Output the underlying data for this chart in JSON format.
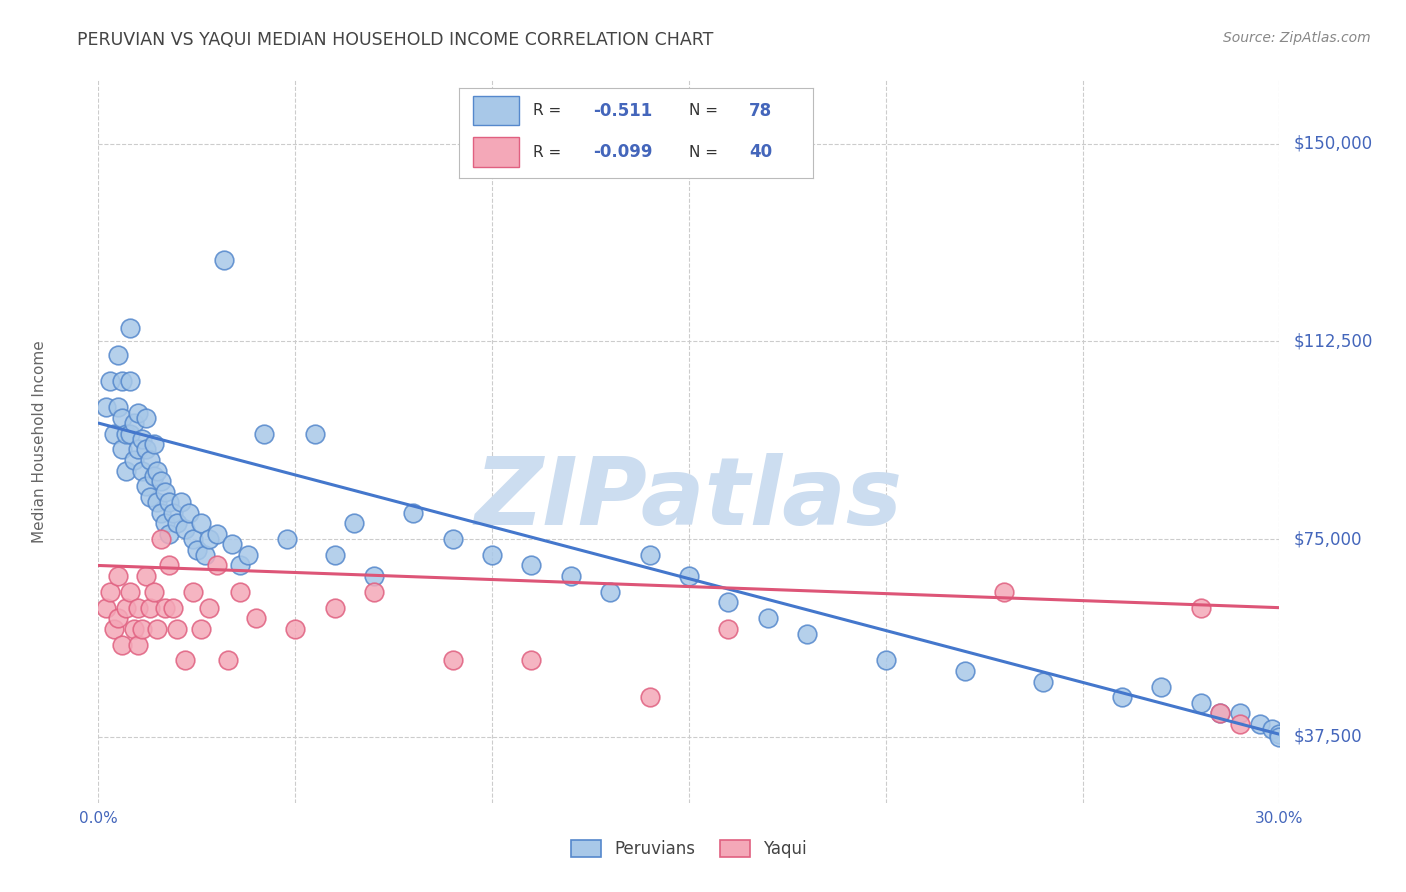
{
  "title": "PERUVIAN VS YAQUI MEDIAN HOUSEHOLD INCOME CORRELATION CHART",
  "source": "Source: ZipAtlas.com",
  "ylabel": "Median Household Income",
  "xlim": [
    0.0,
    0.3
  ],
  "ylim": [
    25000,
    162000
  ],
  "yticks": [
    37500,
    75000,
    112500,
    150000
  ],
  "ytick_labels": [
    "$37,500",
    "$75,000",
    "$112,500",
    "$150,000"
  ],
  "xticks": [
    0.0,
    0.05,
    0.1,
    0.15,
    0.2,
    0.25,
    0.3
  ],
  "blue_color": "#a8c8e8",
  "pink_color": "#f4a8b8",
  "blue_edge_color": "#5588cc",
  "pink_edge_color": "#e06080",
  "blue_line_color": "#4477cc",
  "pink_line_color": "#dd5577",
  "text_color": "#4466bb",
  "title_color": "#444444",
  "source_color": "#888888",
  "axis_label_color": "#666666",
  "grid_color": "#cccccc",
  "background_color": "#ffffff",
  "watermark_text": "ZIPatlas",
  "watermark_color": "#ccddf0",
  "legend_blue_r": "-0.511",
  "legend_blue_n": "78",
  "legend_pink_r": "-0.099",
  "legend_pink_n": "40",
  "blue_trend_x": [
    0.0,
    0.3
  ],
  "blue_trend_y": [
    97000,
    38000
  ],
  "pink_trend_x": [
    0.0,
    0.3
  ],
  "pink_trend_y": [
    70000,
    62000
  ],
  "blue_x": [
    0.002,
    0.003,
    0.004,
    0.005,
    0.005,
    0.006,
    0.006,
    0.006,
    0.007,
    0.007,
    0.008,
    0.008,
    0.008,
    0.009,
    0.009,
    0.01,
    0.01,
    0.011,
    0.011,
    0.012,
    0.012,
    0.012,
    0.013,
    0.013,
    0.014,
    0.014,
    0.015,
    0.015,
    0.016,
    0.016,
    0.017,
    0.017,
    0.018,
    0.018,
    0.019,
    0.02,
    0.021,
    0.022,
    0.023,
    0.024,
    0.025,
    0.026,
    0.027,
    0.028,
    0.03,
    0.032,
    0.034,
    0.036,
    0.038,
    0.042,
    0.048,
    0.055,
    0.06,
    0.065,
    0.07,
    0.08,
    0.09,
    0.1,
    0.11,
    0.12,
    0.13,
    0.14,
    0.15,
    0.16,
    0.17,
    0.18,
    0.2,
    0.22,
    0.24,
    0.26,
    0.27,
    0.28,
    0.285,
    0.29,
    0.295,
    0.298,
    0.3,
    0.3
  ],
  "blue_y": [
    100000,
    105000,
    95000,
    110000,
    100000,
    92000,
    98000,
    105000,
    88000,
    95000,
    115000,
    105000,
    95000,
    90000,
    97000,
    92000,
    99000,
    88000,
    94000,
    85000,
    92000,
    98000,
    83000,
    90000,
    87000,
    93000,
    82000,
    88000,
    80000,
    86000,
    78000,
    84000,
    76000,
    82000,
    80000,
    78000,
    82000,
    77000,
    80000,
    75000,
    73000,
    78000,
    72000,
    75000,
    76000,
    128000,
    74000,
    70000,
    72000,
    95000,
    75000,
    95000,
    72000,
    78000,
    68000,
    80000,
    75000,
    72000,
    70000,
    68000,
    65000,
    72000,
    68000,
    63000,
    60000,
    57000,
    52000,
    50000,
    48000,
    45000,
    47000,
    44000,
    42000,
    42000,
    40000,
    39000,
    38000,
    37500
  ],
  "pink_x": [
    0.002,
    0.003,
    0.004,
    0.005,
    0.005,
    0.006,
    0.007,
    0.008,
    0.009,
    0.01,
    0.01,
    0.011,
    0.012,
    0.013,
    0.014,
    0.015,
    0.016,
    0.017,
    0.018,
    0.019,
    0.02,
    0.022,
    0.024,
    0.026,
    0.028,
    0.03,
    0.033,
    0.036,
    0.04,
    0.05,
    0.06,
    0.07,
    0.09,
    0.11,
    0.14,
    0.16,
    0.23,
    0.28,
    0.285,
    0.29
  ],
  "pink_y": [
    62000,
    65000,
    58000,
    68000,
    60000,
    55000,
    62000,
    65000,
    58000,
    55000,
    62000,
    58000,
    68000,
    62000,
    65000,
    58000,
    75000,
    62000,
    70000,
    62000,
    58000,
    52000,
    65000,
    58000,
    62000,
    70000,
    52000,
    65000,
    60000,
    58000,
    62000,
    65000,
    52000,
    52000,
    45000,
    58000,
    65000,
    62000,
    42000,
    40000
  ]
}
